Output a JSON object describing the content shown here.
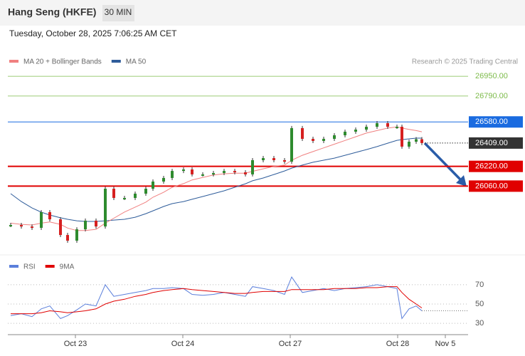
{
  "header": {
    "title": "Hang Seng (HKFE)",
    "interval": "30 MIN",
    "timestamp": "Tuesday, October 28, 2025 7:06:25 AM CET"
  },
  "chart_data": [
    {
      "type": "candlestick",
      "legend": [
        {
          "name": "MA 20 + Bollinger Bands",
          "color": "#f08080"
        },
        {
          "name": "MA 50",
          "color": "#2e5c9a"
        }
      ],
      "credit": "Research © 2025 Trading Central",
      "x": [
        4,
        19,
        34,
        47,
        59,
        74,
        84,
        97,
        109,
        124,
        137,
        149,
        164,
        179,
        194,
        204,
        219,
        231,
        247,
        259,
        274,
        289,
        304,
        319,
        334,
        344,
        359,
        374,
        389,
        399,
        414,
        429,
        444,
        459,
        474,
        489,
        504,
        519,
        534,
        547,
        554,
        564,
        574,
        582
      ],
      "close": [
        25745,
        25733,
        25722,
        25849,
        25791,
        25664,
        25618,
        25710,
        25780,
        25733,
        26039,
        25964,
        25964,
        25999,
        26039,
        26097,
        26126,
        26183,
        26195,
        26155,
        26155,
        26166,
        26183,
        26172,
        26155,
        26270,
        26287,
        26270,
        26258,
        26530,
        26443,
        26426,
        26443,
        26472,
        26501,
        26518,
        26541,
        26570,
        26541,
        26541,
        26380,
        26420,
        26440,
        26409
      ],
      "ma20": [
        25760,
        25750,
        25745,
        25760,
        25770,
        25750,
        25720,
        25700,
        25700,
        25710,
        25760,
        25800,
        25850,
        25890,
        25930,
        25970,
        26010,
        26050,
        26080,
        26110,
        26130,
        26150,
        26160,
        26165,
        26165,
        26180,
        26200,
        26220,
        26230,
        26270,
        26310,
        26340,
        26370,
        26400,
        26430,
        26460,
        26490,
        26510,
        26530,
        26540,
        26530,
        26520,
        26510,
        26500
      ],
      "ma50": [
        25999,
        25935,
        25883,
        25849,
        25826,
        25803,
        25791,
        25779,
        25774,
        25774,
        25779,
        25785,
        25791,
        25808,
        25837,
        25860,
        25895,
        25918,
        25935,
        25953,
        25976,
        25999,
        26022,
        26051,
        26079,
        26103,
        26126,
        26154,
        26183,
        26206,
        26230,
        26253,
        26270,
        26287,
        26310,
        26333,
        26356,
        26380,
        26408,
        26431,
        26437,
        26443,
        26449,
        26449
      ],
      "up_color": "#2e8b2e",
      "down_color": "#d62020",
      "xlim": [
        0,
        647
      ],
      "ylim": [
        25520,
        27020
      ],
      "xticks": [
        {
          "value": 95,
          "label": "Oct 23"
        },
        {
          "value": 246,
          "label": "Oct 24"
        },
        {
          "value": 397,
          "label": "Oct 27"
        },
        {
          "value": 548,
          "label": "Oct 28"
        },
        {
          "value": 615,
          "label": "Nov 5"
        }
      ],
      "levels": [
        {
          "value": 26950,
          "label": "26950.00",
          "color": "#7dbb4a",
          "style": "thin"
        },
        {
          "value": 26790,
          "label": "26790.00",
          "color": "#7dbb4a",
          "style": "thin"
        },
        {
          "value": 26580,
          "label": "26580.00",
          "color": "#1a6be0",
          "style": "box"
        },
        {
          "value": 26409,
          "label": "26409.00",
          "color": "#333333",
          "style": "current"
        },
        {
          "value": 26220,
          "label": "26220.00",
          "color": "#e00000",
          "style": "box"
        },
        {
          "value": 26060,
          "label": "26060.00",
          "color": "#e00000",
          "style": "box"
        }
      ]
    },
    {
      "type": "line",
      "x": [
        4,
        19,
        34,
        47,
        59,
        74,
        84,
        97,
        109,
        124,
        137,
        149,
        164,
        179,
        194,
        204,
        219,
        231,
        247,
        259,
        274,
        289,
        304,
        319,
        334,
        344,
        359,
        374,
        389,
        399,
        414,
        429,
        444,
        459,
        474,
        489,
        504,
        519,
        534,
        547,
        554,
        564,
        574,
        582
      ],
      "series": [
        {
          "name": "RSI",
          "color": "#5b7fdb",
          "values": [
            38,
            40,
            37,
            45,
            48,
            35,
            38,
            44,
            50,
            48,
            70,
            58,
            60,
            62,
            64,
            66,
            66,
            67,
            66,
            60,
            59,
            60,
            62,
            60,
            58,
            68,
            66,
            64,
            60,
            78,
            62,
            64,
            66,
            64,
            66,
            67,
            68,
            70,
            68,
            66,
            35,
            45,
            48,
            43
          ]
        },
        {
          "name": "9MA",
          "color": "#e00000",
          "values": [
            40,
            40,
            40,
            41,
            43,
            42,
            41,
            42,
            43,
            45,
            50,
            53,
            55,
            58,
            60,
            62,
            64,
            65,
            66,
            65,
            64,
            63,
            62,
            61,
            61,
            62,
            63,
            63,
            63,
            65,
            65,
            65,
            65,
            66,
            66,
            66,
            67,
            67,
            68,
            68,
            62,
            55,
            50,
            46
          ]
        }
      ],
      "xlim": [
        0,
        647
      ],
      "ylim": [
        22,
        81
      ],
      "yticks": [
        70,
        50,
        30
      ],
      "grid": true
    }
  ]
}
